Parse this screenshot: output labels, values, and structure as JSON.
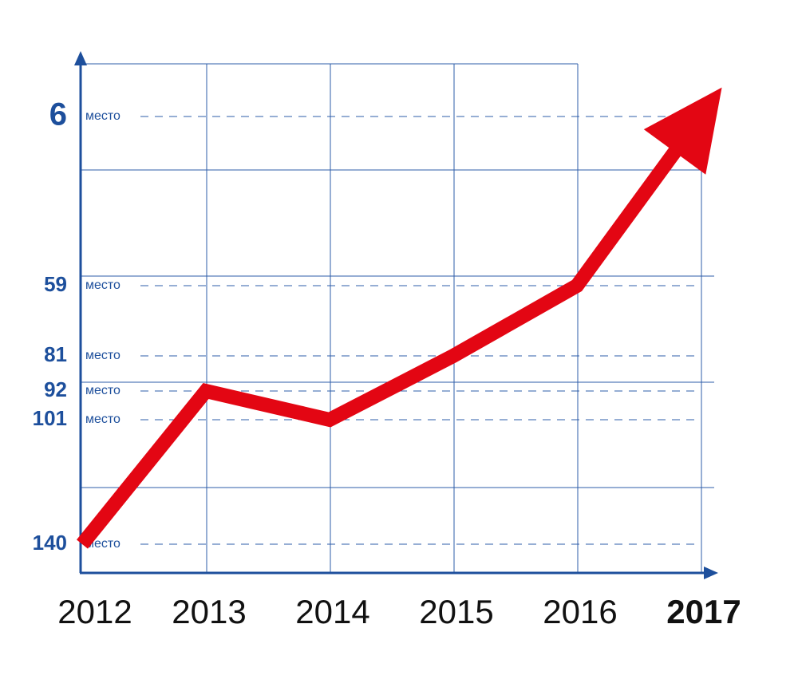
{
  "chart_data": {
    "type": "line",
    "categories": [
      "2012",
      "2013",
      "2014",
      "2015",
      "2016",
      "2017"
    ],
    "values": [
      140,
      92,
      101,
      81,
      59,
      6
    ],
    "color": "#e30613",
    "ylim": [
      149,
      -12
    ],
    "yticks": [
      6,
      59,
      81,
      92,
      101,
      140
    ],
    "tick_unit": "место"
  }
}
